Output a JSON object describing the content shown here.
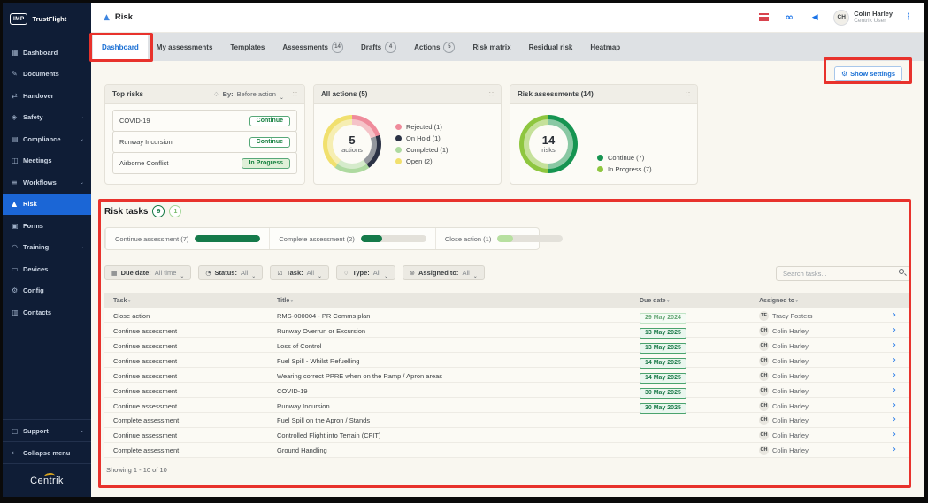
{
  "annotations": {
    "color": "#e8322c"
  },
  "icons": {
    "queue-icon": "red-list-bars",
    "link-icon": "∞",
    "megaphone-icon": "◀",
    "kebab-icon": "⋮",
    "search-icon": "magnifier",
    "settings-gear-icon": "⚙",
    "drag-handle-icon": "∷",
    "sort-arrow-icon": "▾",
    "row-chevron-icon": "›"
  },
  "sidebar": {
    "logo_badge": "IMP",
    "logo_text": "TrustFlight",
    "items": [
      {
        "label": "Dashboard",
        "icon": "dashboard-icon",
        "glyph": "▦"
      },
      {
        "label": "Documents",
        "icon": "documents-icon",
        "glyph": "✎"
      },
      {
        "label": "Handover",
        "icon": "handover-icon",
        "glyph": "⇄"
      },
      {
        "label": "Safety",
        "icon": "safety-icon",
        "glyph": "◈",
        "expandable": true
      },
      {
        "label": "Compliance",
        "icon": "compliance-icon",
        "glyph": "▤",
        "expandable": true
      },
      {
        "label": "Meetings",
        "icon": "meetings-icon",
        "glyph": "◫"
      },
      {
        "label": "Workflows",
        "icon": "workflows-icon",
        "glyph": "≡",
        "expandable": true
      },
      {
        "label": "Risk",
        "icon": "risk-icon",
        "glyph": "▲",
        "active": true
      },
      {
        "label": "Forms",
        "icon": "forms-icon",
        "glyph": "▣"
      },
      {
        "label": "Training",
        "icon": "training-icon",
        "glyph": "◠",
        "expandable": true
      },
      {
        "label": "Devices",
        "icon": "devices-icon",
        "glyph": "▭"
      },
      {
        "label": "Config",
        "icon": "config-icon",
        "glyph": "⚙"
      },
      {
        "label": "Contacts",
        "icon": "contacts-icon",
        "glyph": "▥"
      }
    ],
    "footer_items": [
      {
        "label": "Support",
        "icon": "support-icon",
        "glyph": "▢",
        "expandable": true
      },
      {
        "label": "Collapse menu",
        "icon": "collapse-icon",
        "glyph": "←"
      }
    ],
    "brand": "Centrik"
  },
  "header": {
    "title": "Risk",
    "user_initials": "CH",
    "user_name": "Colin Harley",
    "user_role": "Centrik User"
  },
  "tabs": [
    {
      "label": "Dashboard",
      "active": true
    },
    {
      "label": "My assessments"
    },
    {
      "label": "Templates"
    },
    {
      "label": "Assessments",
      "count": "14"
    },
    {
      "label": "Drafts",
      "count": "4"
    },
    {
      "label": "Actions",
      "count": "5"
    },
    {
      "label": "Risk matrix"
    },
    {
      "label": "Residual risk"
    },
    {
      "label": "Heatmap"
    }
  ],
  "settings_button_label": "Show settings",
  "cards": {
    "top_risks": {
      "title": "Top risks",
      "by_label": "By:",
      "by_value": "Before action",
      "rows": [
        {
          "name": "COVID-19",
          "status": "Continue"
        },
        {
          "name": "Runway Incursion",
          "status": "Continue"
        },
        {
          "name": "Airborne Conflict",
          "status": "In Progress",
          "in_progress": true
        }
      ]
    },
    "all_actions": {
      "title": "All actions (5)",
      "center_value": "5",
      "center_label": "actions",
      "legend": [
        {
          "text": "Rejected (1)",
          "color": "#ef8b9b"
        },
        {
          "text": "On Hold (1)",
          "color": "#2b3245"
        },
        {
          "text": "Completed (1)",
          "color": "#aedaa0"
        },
        {
          "text": "Open (2)",
          "color": "#f1e06e"
        }
      ]
    },
    "risk_assessments": {
      "title": "Risk assessments (14)",
      "center_value": "14",
      "center_label": "risks",
      "legend": [
        {
          "text": "Continue (7)",
          "color": "#169451"
        },
        {
          "text": "In Progress (7)",
          "color": "#8ec63f"
        }
      ]
    }
  },
  "chart_data": [
    {
      "type": "pie",
      "title": "All actions (5)",
      "center_value": "5",
      "center_label": "actions",
      "segments": [
        {
          "label": "Rejected",
          "value": 1,
          "color": "#ef8b9b"
        },
        {
          "label": "On Hold",
          "value": 1,
          "color": "#2b3245"
        },
        {
          "label": "Completed",
          "value": 1,
          "color": "#aedaa0"
        },
        {
          "label": "Open",
          "value": 2,
          "color": "#f1e06e"
        }
      ]
    },
    {
      "type": "pie",
      "title": "Risk assessments (14)",
      "center_value": "14",
      "center_label": "risks",
      "segments": [
        {
          "label": "Continue",
          "value": 7,
          "color": "#169451"
        },
        {
          "label": "In Progress",
          "value": 7,
          "color": "#8ec63f"
        }
      ]
    }
  ],
  "risk_tasks": {
    "title": "Risk tasks",
    "badge_primary": "9",
    "badge_secondary": "1",
    "progress": [
      {
        "label": "Continue assessment (7)",
        "pct": 100,
        "color": "#157a4a"
      },
      {
        "label": "Complete assessment (2)",
        "pct": 32,
        "color": "#157a4a"
      },
      {
        "label": "Close action (1)",
        "pct": 24,
        "color": "#b7e0a0"
      }
    ],
    "filters": [
      {
        "icon": "calendar-icon",
        "glyph": "▦",
        "label": "Due date:",
        "value": "All time"
      },
      {
        "icon": "clock-icon",
        "glyph": "◔",
        "label": "Status:",
        "value": "All"
      },
      {
        "icon": "task-icon",
        "glyph": "☑",
        "label": "Task:",
        "value": "All"
      },
      {
        "icon": "tag-icon",
        "glyph": "♢",
        "label": "Type:",
        "value": "All"
      },
      {
        "icon": "assignee-icon",
        "glyph": "⊚",
        "label": "Assigned to:",
        "value": "All"
      }
    ],
    "search_placeholder": "Search tasks...",
    "table": {
      "columns": [
        "Task",
        "Title",
        "Due date",
        "Assigned to"
      ],
      "rows": [
        {
          "task": "Close action",
          "title": "RMS-000004 - PR Comms plan",
          "due": "29 May 2024",
          "due_past": true,
          "initials": "TF",
          "assignee": "Tracy Fosters"
        },
        {
          "task": "Continue assessment",
          "title": "Runway Overrun or Excursion",
          "due": "13 May 2025",
          "initials": "CH",
          "assignee": "Colin Harley"
        },
        {
          "task": "Continue assessment",
          "title": "Loss of Control",
          "due": "13 May 2025",
          "initials": "CH",
          "assignee": "Colin Harley"
        },
        {
          "task": "Continue assessment",
          "title": "Fuel Spill - Whilst Refuelling",
          "due": "14 May 2025",
          "initials": "CH",
          "assignee": "Colin Harley"
        },
        {
          "task": "Continue assessment",
          "title": "Wearing correct PPRE when on the Ramp / Apron areas",
          "due": "14 May 2025",
          "initials": "CH",
          "assignee": "Colin Harley"
        },
        {
          "task": "Continue assessment",
          "title": "COVID-19",
          "due": "30 May 2025",
          "initials": "CH",
          "assignee": "Colin Harley"
        },
        {
          "task": "Continue assessment",
          "title": "Runway Incursion",
          "due": "30 May 2025",
          "initials": "CH",
          "assignee": "Colin Harley"
        },
        {
          "task": "Complete assessment",
          "title": "Fuel Spill on the Apron / Stands",
          "initials": "CH",
          "assignee": "Colin Harley"
        },
        {
          "task": "Continue assessment",
          "title": "Controlled Flight into Terrain (CFIT)",
          "initials": "CH",
          "assignee": "Colin Harley"
        },
        {
          "task": "Complete assessment",
          "title": "Ground Handling",
          "initials": "CH",
          "assignee": "Colin Harley"
        }
      ]
    },
    "footer": "Showing 1 - 10 of 10"
  }
}
